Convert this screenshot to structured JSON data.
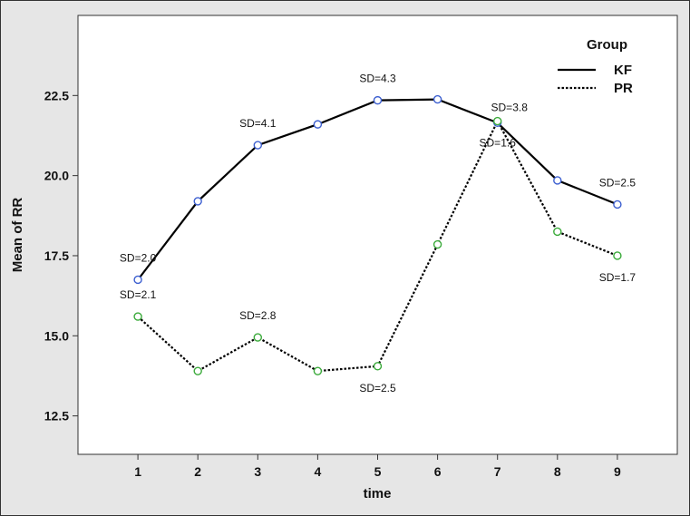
{
  "chart_data": {
    "type": "line",
    "xlabel": "time",
    "ylabel": "Mean of RR",
    "x": [
      1,
      2,
      3,
      4,
      5,
      6,
      7,
      8,
      9
    ],
    "xlim": [
      0,
      10
    ],
    "ylim": [
      11.3,
      25.0
    ],
    "yticks": [
      12.5,
      15.0,
      17.5,
      20.0,
      22.5
    ],
    "ytick_labels": [
      "12.5",
      "15.0",
      "17.5",
      "20.0",
      "22.5"
    ],
    "xtick_labels": [
      "1",
      "2",
      "3",
      "4",
      "5",
      "6",
      "7",
      "8",
      "9"
    ],
    "grid": false,
    "legend": {
      "title": "Group",
      "position": "top-right"
    },
    "series": [
      {
        "name": "KF",
        "line_style": "solid",
        "line_color": "#000000",
        "marker_color": "#3c5fd0",
        "values": [
          16.75,
          19.2,
          20.95,
          21.6,
          22.35,
          22.38,
          21.65,
          19.85,
          19.1
        ]
      },
      {
        "name": "PR",
        "line_style": "dotted",
        "line_color": "#000000",
        "marker_color": "#3aaa3a",
        "values": [
          15.6,
          13.9,
          14.95,
          13.9,
          14.05,
          17.85,
          21.7,
          18.25,
          17.5
        ]
      }
    ],
    "annotations": [
      {
        "text": "SD=2.0",
        "x": 1,
        "y": 16.75,
        "placement": "above"
      },
      {
        "text": "SD=4.1",
        "x": 3,
        "y": 20.95,
        "placement": "above"
      },
      {
        "text": "SD=4.3",
        "x": 5,
        "y": 22.35,
        "placement": "above"
      },
      {
        "text": "SD=3.8",
        "x": 7,
        "y": 21.65,
        "placement": "above-right"
      },
      {
        "text": "SD=2.5",
        "x": 9,
        "y": 19.1,
        "placement": "above"
      },
      {
        "text": "SD=2.1",
        "x": 1,
        "y": 15.6,
        "placement": "above"
      },
      {
        "text": "SD=2.8",
        "x": 3,
        "y": 14.95,
        "placement": "above"
      },
      {
        "text": "SD=2.5",
        "x": 5,
        "y": 14.05,
        "placement": "below"
      },
      {
        "text": "SD=1.6",
        "x": 7,
        "y": 21.7,
        "placement": "below"
      },
      {
        "text": "SD=1.7",
        "x": 9,
        "y": 17.5,
        "placement": "below"
      }
    ]
  }
}
